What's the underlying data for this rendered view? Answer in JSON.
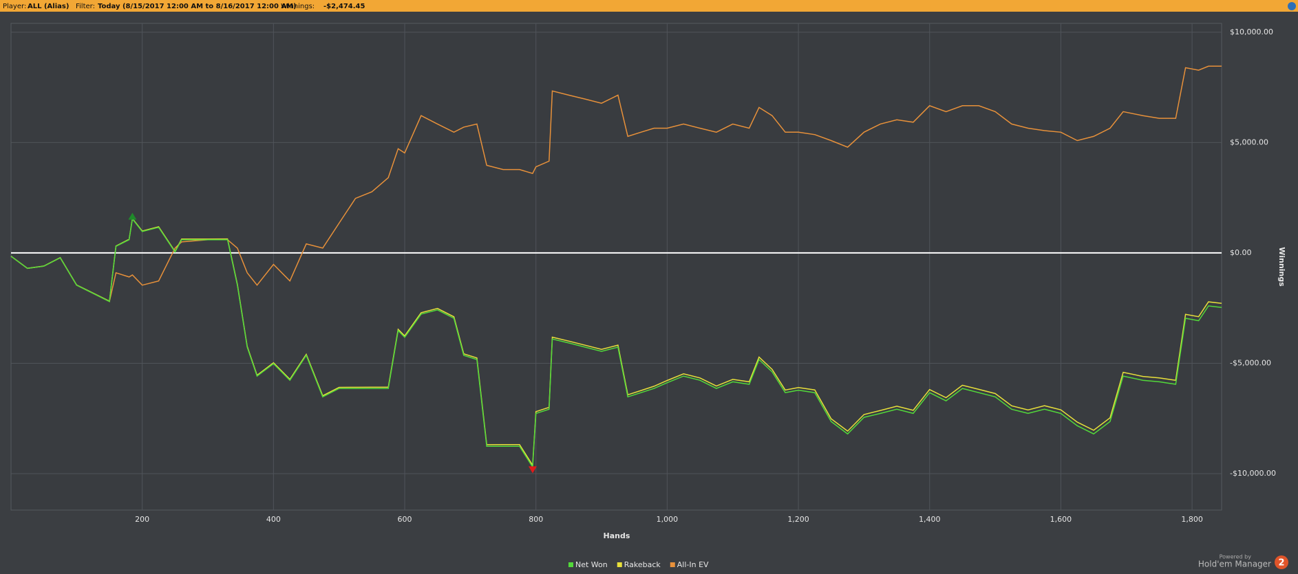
{
  "header": {
    "player_label": "Player:",
    "player": "ALL (Alias)",
    "filter_label": "Filter:",
    "filter": "Today (8/15/2017 12:00 AM to 8/16/2017 12:00 AM)",
    "winnings_label": "Winnings:",
    "winnings": "-$2,474.45"
  },
  "branding": {
    "powered_by": "Powered by",
    "product": "Hold'em Manager",
    "version": "2"
  },
  "chart_data": {
    "type": "line",
    "x_label": "Hands",
    "y_label": "Winnings",
    "grid": true,
    "legend": "bottom",
    "x": [
      0,
      25,
      50,
      75,
      100,
      125,
      150,
      160,
      180,
      185,
      200,
      225,
      250,
      260,
      300,
      330,
      345,
      360,
      375,
      400,
      425,
      450,
      475,
      500,
      525,
      550,
      575,
      590,
      600,
      625,
      650,
      675,
      690,
      710,
      725,
      750,
      775,
      795,
      800,
      820,
      825,
      850,
      875,
      900,
      925,
      940,
      960,
      980,
      1000,
      1025,
      1050,
      1075,
      1100,
      1125,
      1140,
      1160,
      1180,
      1200,
      1225,
      1250,
      1275,
      1300,
      1325,
      1350,
      1375,
      1400,
      1425,
      1450,
      1475,
      1500,
      1525,
      1550,
      1575,
      1600,
      1625,
      1650,
      1675,
      1695,
      1725,
      1750,
      1775,
      1790,
      1810,
      1825,
      1845
    ],
    "series": [
      {
        "name": "Net Won",
        "color": "#52d93a",
        "values": [
          -150,
          -700,
          -600,
          -220,
          -1460,
          -1830,
          -2200,
          300,
          600,
          1540,
          970,
          1160,
          40,
          600,
          600,
          600,
          -1460,
          -4270,
          -5580,
          -5020,
          -5770,
          -4640,
          -6520,
          -6140,
          -6140,
          -6140,
          -6140,
          -3520,
          -3820,
          -2770,
          -2580,
          -2960,
          -4640,
          -4830,
          -8760,
          -8760,
          -8760,
          -9700,
          -7270,
          -7080,
          -3900,
          -4080,
          -4270,
          -4460,
          -4270,
          -6520,
          -6330,
          -6140,
          -5880,
          -5580,
          -5770,
          -6140,
          -5840,
          -5950,
          -4830,
          -5390,
          -6330,
          -6220,
          -6330,
          -7640,
          -8200,
          -7450,
          -7270,
          -7080,
          -7270,
          -6330,
          -6700,
          -6140,
          -6330,
          -6520,
          -7080,
          -7270,
          -7080,
          -7270,
          -7830,
          -8200,
          -7640,
          -5580,
          -5770,
          -5840,
          -5950,
          -2960,
          -3070,
          -2400,
          -2470
        ]
      },
      {
        "name": "Rakeback",
        "color": "#e8e03a",
        "values": [
          -150,
          -697,
          -595,
          -212,
          -1450,
          -1817,
          -2185,
          316,
          618,
          1559,
          990,
          1183,
          65,
          626,
          630,
          633,
          -1425,
          -4234,
          -5542,
          -4980,
          -5727,
          -4595,
          -6472,
          -6090,
          -6087,
          -6085,
          -6082,
          -3461,
          -3760,
          -2707,
          -2515,
          -2892,
          -4571,
          -4759,
          -8687,
          -8685,
          -8682,
          -9620,
          -7190,
          -6998,
          -3817,
          -3995,
          -4182,
          -4370,
          -4177,
          -6426,
          -6234,
          -6042,
          -5780,
          -5477,
          -5665,
          -6032,
          -5730,
          -5837,
          -4716,
          -5274,
          -6212,
          -6100,
          -6207,
          -7515,
          -8072,
          -7320,
          -7137,
          -6945,
          -7132,
          -6190,
          -6557,
          -5995,
          -6182,
          -6370,
          -6927,
          -7115,
          -6922,
          -7110,
          -7667,
          -8035,
          -7472,
          -5410,
          -5597,
          -5665,
          -5772,
          -2781,
          -2889,
          -2217,
          -2285
        ]
      },
      {
        "name": "All-In EV",
        "color": "#e8913a",
        "values": [
          -150,
          -700,
          -600,
          -220,
          -1460,
          -1830,
          -2200,
          -900,
          -1090,
          -1000,
          -1460,
          -1270,
          220,
          500,
          600,
          600,
          220,
          -900,
          -1460,
          -520,
          -1270,
          410,
          220,
          1350,
          2470,
          2770,
          3410,
          4720,
          4530,
          6220,
          5840,
          5470,
          5700,
          5840,
          3970,
          3780,
          3780,
          3600,
          3900,
          4160,
          7340,
          7150,
          6970,
          6780,
          7150,
          5280,
          5470,
          5650,
          5650,
          5840,
          5650,
          5470,
          5840,
          5650,
          6590,
          6220,
          5470,
          5470,
          5360,
          5090,
          4790,
          5470,
          5840,
          6030,
          5920,
          6670,
          6400,
          6670,
          6670,
          6400,
          5840,
          5650,
          5540,
          5470,
          5090,
          5280,
          5650,
          6400,
          6220,
          6100,
          6100,
          8390,
          8280,
          8460,
          8460
        ]
      }
    ],
    "xlim": [
      0,
      1845
    ],
    "ylim": [
      -11650,
      10400
    ],
    "xticks": [
      200,
      400,
      600,
      800,
      {
        "value": 1000,
        "label": "1,000"
      },
      {
        "value": 1200,
        "label": "1,200"
      },
      {
        "value": 1400,
        "label": "1,400"
      },
      {
        "value": 1600,
        "label": "1,600"
      },
      {
        "value": 1800,
        "label": "1,800"
      }
    ],
    "yticks": [
      {
        "value": -10000,
        "label": "-$10,000.00"
      },
      {
        "value": -5000,
        "label": "-$5,000.00"
      },
      {
        "value": 0,
        "label": "$0.00"
      },
      {
        "value": 5000,
        "label": "$5,000.00"
      },
      {
        "value": 10000,
        "label": "$10,000.00"
      }
    ]
  }
}
